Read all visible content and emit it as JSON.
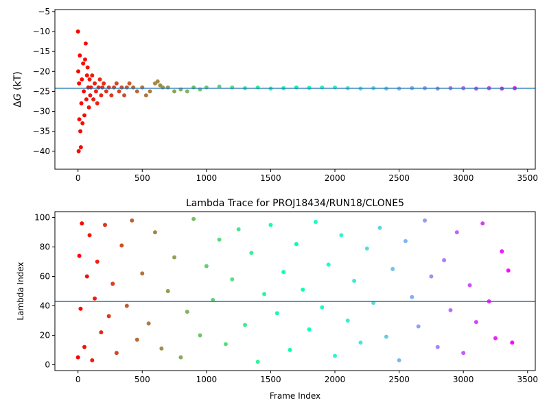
{
  "chart_data": [
    {
      "type": "scatter",
      "title": "",
      "xlabel": "",
      "ylabel": "ΔG (kT)",
      "ylabel_parts": {
        "delta": "Δ",
        "var": "G",
        "unit": " (kT)"
      },
      "xlim": [
        -180,
        3560
      ],
      "ylim": [
        -44.5,
        -4.5
      ],
      "xticks": [
        0,
        500,
        1000,
        1500,
        2000,
        2500,
        3000,
        3500
      ],
      "xtick_labels": [
        "0",
        "500",
        "1000",
        "1500",
        "2000",
        "2500",
        "3000",
        "3500"
      ],
      "yticks": [
        -40,
        -35,
        -30,
        -25,
        -20,
        -15,
        -10,
        -5
      ],
      "ytick_labels": [
        "−40",
        "−35",
        "−30",
        "−25",
        "−20",
        "−15",
        "−10",
        "−5"
      ],
      "grid": false,
      "colormap": "rainbow",
      "color_by": "frame index",
      "hline": {
        "y": -24.2,
        "color": "#1f77b4"
      },
      "series": [
        {
          "x": [
            0,
            2,
            5,
            8,
            10,
            14,
            18,
            22,
            26,
            30,
            35,
            40,
            45,
            50,
            55,
            60,
            65,
            70,
            75,
            80,
            85,
            90,
            95,
            100,
            110,
            120,
            130,
            140,
            150,
            160,
            170,
            180,
            190,
            200,
            220,
            240,
            260,
            280,
            300,
            320,
            340,
            360,
            380,
            400,
            430,
            460,
            500,
            530,
            560,
            600,
            620,
            640,
            660,
            700,
            750,
            800,
            850,
            900,
            950,
            1000,
            1100,
            1200,
            1300,
            1400,
            1500,
            1600,
            1700,
            1800,
            1900,
            2000,
            2100,
            2200,
            2300,
            2400,
            2500,
            2600,
            2700,
            2800,
            2900,
            3000,
            3100,
            3200,
            3300,
            3400
          ],
          "y": [
            -10,
            -20,
            -40,
            -23,
            -32,
            -16,
            -35,
            -39,
            -28,
            -22,
            -33,
            -18,
            -25,
            -31,
            -17,
            -13,
            -27,
            -21,
            -19,
            -24,
            -29,
            -22,
            -26,
            -24,
            -21,
            -27,
            -23,
            -25,
            -28,
            -24,
            -22,
            -26,
            -24,
            -23,
            -25,
            -24,
            -26,
            -24,
            -23,
            -25,
            -24,
            -26,
            -24,
            -23,
            -24,
            -25,
            -24,
            -26,
            -25,
            -23,
            -22.5,
            -23.5,
            -24,
            -24,
            -25,
            -24.5,
            -25,
            -24,
            -24.5,
            -24,
            -23.8,
            -24,
            -24.2,
            -24,
            -24.3,
            -24.2,
            -24,
            -24.1,
            -24,
            -24,
            -24.2,
            -24.3,
            -24.2,
            -24.3,
            -24.3,
            -24.2,
            -24.2,
            -24.3,
            -24.2,
            -24.2,
            -24.3,
            -24.2,
            -24.3,
            -24.2
          ]
        }
      ]
    },
    {
      "type": "scatter",
      "title": "Lambda Trace for PROJ18434/RUN18/CLONE5",
      "xlabel": "Frame Index",
      "ylabel": "Lambda Index",
      "xlim": [
        -180,
        3560
      ],
      "ylim": [
        -4,
        104
      ],
      "xticks": [
        0,
        500,
        1000,
        1500,
        2000,
        2500,
        3000,
        3500
      ],
      "xtick_labels": [
        "0",
        "500",
        "1000",
        "1500",
        "2000",
        "2500",
        "3000",
        "3500"
      ],
      "yticks": [
        0,
        20,
        40,
        60,
        80,
        100
      ],
      "ytick_labels": [
        "0",
        "20",
        "40",
        "60",
        "80",
        "100"
      ],
      "grid": false,
      "colormap": "rainbow",
      "color_by": "frame index",
      "hline": {
        "y": 43,
        "color": "#1f77b4"
      },
      "series": [
        {
          "x": [
            0,
            10,
            20,
            30,
            50,
            70,
            90,
            110,
            130,
            150,
            180,
            210,
            240,
            270,
            300,
            340,
            380,
            420,
            460,
            500,
            550,
            600,
            650,
            700,
            750,
            800,
            850,
            900,
            950,
            1000,
            1050,
            1100,
            1150,
            1200,
            1250,
            1300,
            1350,
            1400,
            1450,
            1500,
            1550,
            1600,
            1650,
            1700,
            1750,
            1800,
            1850,
            1900,
            1950,
            2000,
            2050,
            2100,
            2150,
            2200,
            2250,
            2300,
            2350,
            2400,
            2450,
            2500,
            2550,
            2600,
            2650,
            2700,
            2750,
            2800,
            2850,
            2900,
            2950,
            3000,
            3050,
            3100,
            3150,
            3200,
            3250,
            3300,
            3350,
            3380
          ],
          "y": [
            5,
            74,
            38,
            96,
            12,
            60,
            88,
            3,
            45,
            70,
            22,
            95,
            33,
            55,
            8,
            81,
            40,
            98,
            17,
            62,
            28,
            90,
            11,
            50,
            73,
            5,
            36,
            99,
            20,
            67,
            44,
            85,
            14,
            58,
            92,
            27,
            76,
            2,
            48,
            95,
            35,
            63,
            10,
            82,
            51,
            24,
            97,
            39,
            68,
            6,
            88,
            30,
            57,
            15,
            79,
            42,
            93,
            19,
            65,
            3,
            84,
            46,
            26,
            98,
            60,
            12,
            71,
            37,
            90,
            8,
            54,
            29,
            96,
            43,
            18,
            77,
            64,
            15
          ]
        }
      ]
    }
  ]
}
